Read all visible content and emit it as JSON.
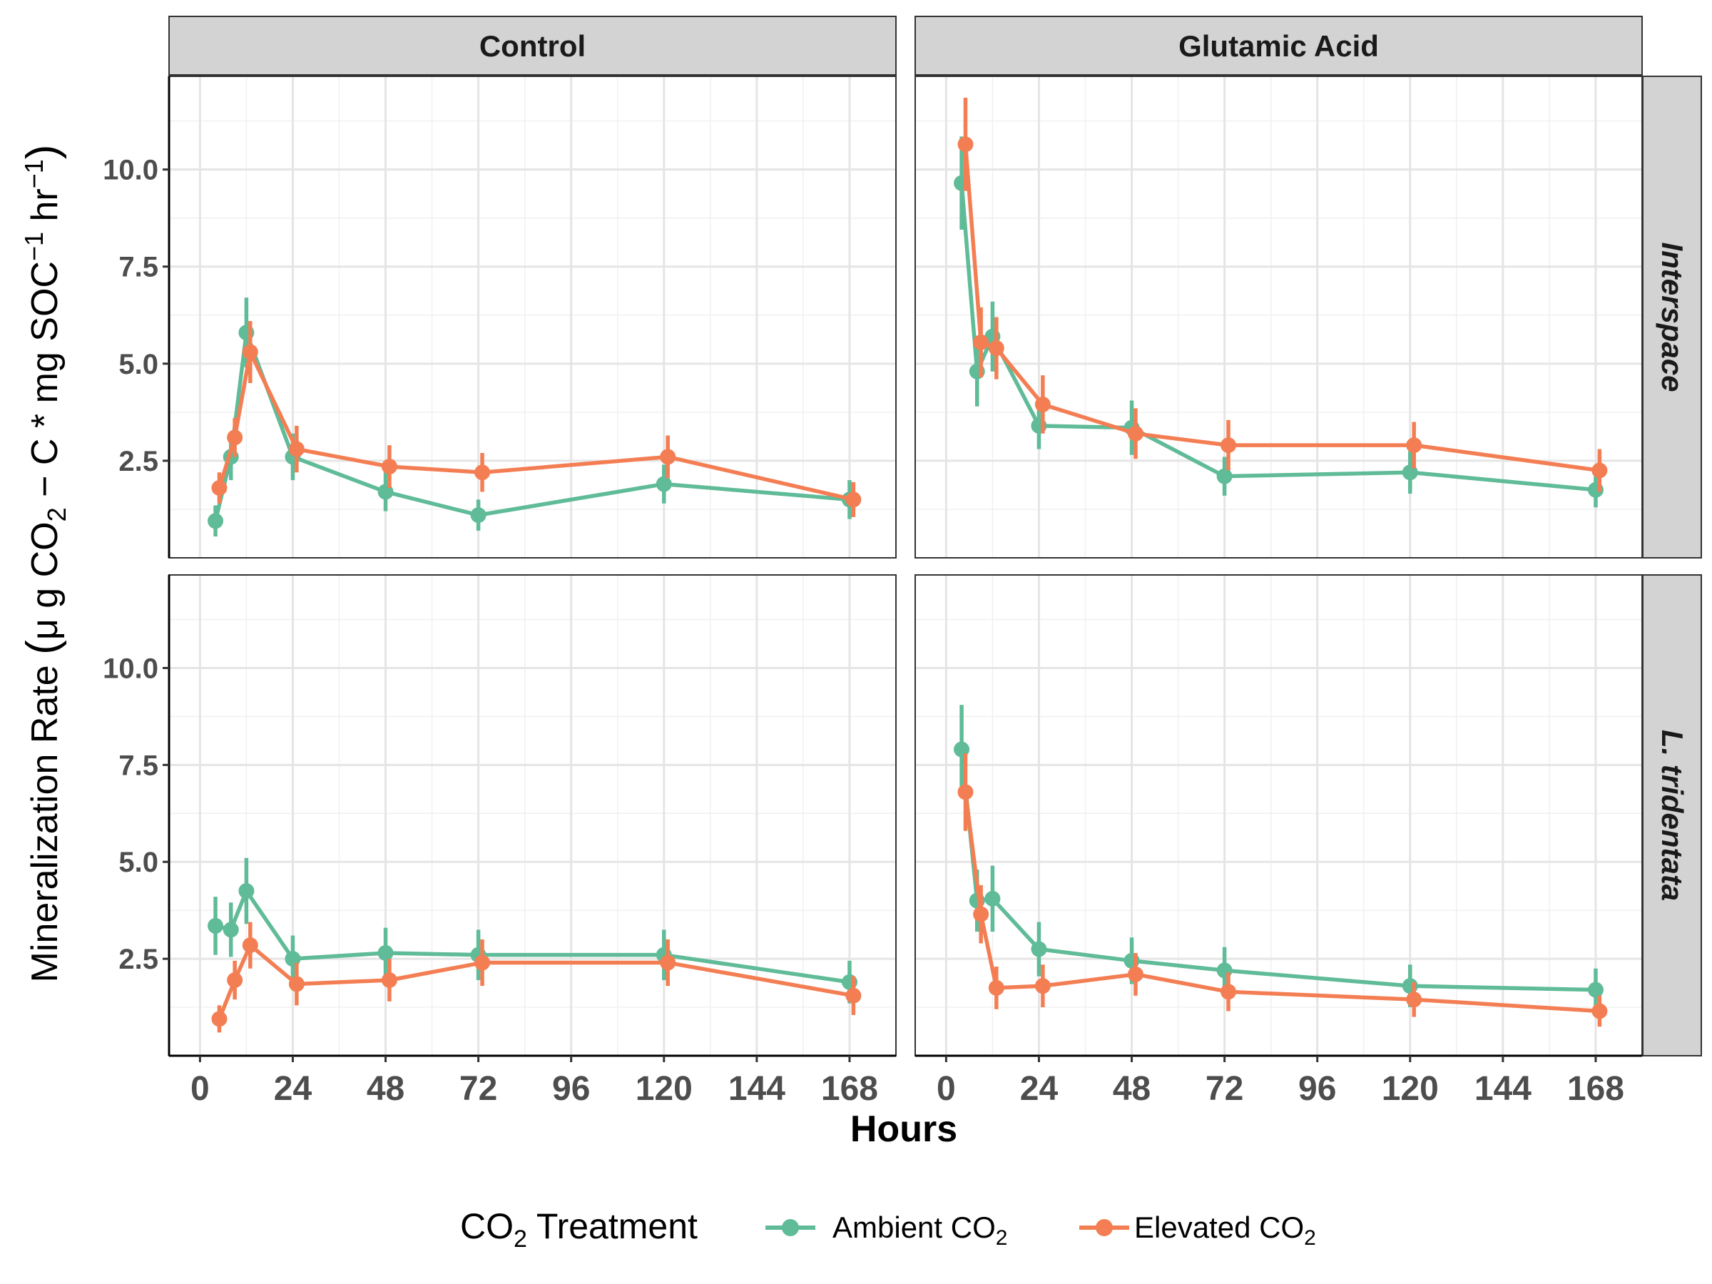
{
  "chart_data": {
    "type": "line",
    "facet_columns": [
      "Control",
      "Glutamic Acid"
    ],
    "facet_rows": [
      "Interspace",
      "L. tridentata"
    ],
    "xlabel": "Hours",
    "ylabel_parts": {
      "main": "Mineralization Rate",
      "lparen": "(",
      "mu": "μ",
      "g_co": " g CO",
      "sub2": "2",
      "c_mg": " − C * mg SOC",
      "sup_neg1": "−1",
      "hr": " hr",
      "sup_neg1b": "−1",
      "rparen": ")"
    },
    "x_ticks": [
      0,
      24,
      48,
      72,
      96,
      120,
      144,
      168
    ],
    "x_tick_labels": [
      "0",
      "24",
      "48",
      "72",
      "96",
      "120",
      "144",
      "168"
    ],
    "xlim": [
      -8,
      180
    ],
    "y_ticks": [
      2.5,
      5.0,
      7.5,
      10.0
    ],
    "y_tick_labels": [
      "2.5",
      "5.0",
      "7.5",
      "10.0"
    ],
    "ylim": [
      0,
      12.4
    ],
    "grid": true,
    "legend": {
      "title_pre": "CO",
      "title_sub": "2",
      "title_post": " Treatment",
      "position": "bottom",
      "entries": [
        {
          "label_pre": "Ambient CO",
          "label_sub": "2",
          "color": "#5FBB98"
        },
        {
          "label_pre": "Elevated CO",
          "label_sub": "2",
          "color": "#F47E53"
        }
      ]
    },
    "panels": [
      {
        "col": 0,
        "row": 0,
        "series": [
          {
            "name": "Ambient",
            "color": "#5FBB98",
            "x": [
              4,
              8,
              12,
              24,
              48,
              72,
              120,
              168
            ],
            "y": [
              0.95,
              2.6,
              5.8,
              2.6,
              1.7,
              1.1,
              1.9,
              1.5
            ],
            "err": [
              0.4,
              0.6,
              0.9,
              0.6,
              0.5,
              0.4,
              0.5,
              0.5
            ]
          },
          {
            "name": "Elevated",
            "color": "#F47E53",
            "x": [
              5,
              9,
              13,
              25,
              49,
              73,
              121,
              169
            ],
            "y": [
              1.8,
              3.1,
              5.3,
              2.8,
              2.35,
              2.2,
              2.6,
              1.5
            ],
            "err": [
              0.4,
              0.5,
              0.8,
              0.6,
              0.55,
              0.5,
              0.55,
              0.45
            ]
          }
        ]
      },
      {
        "col": 1,
        "row": 0,
        "series": [
          {
            "name": "Ambient",
            "color": "#5FBB98",
            "x": [
              4,
              8,
              12,
              24,
              48,
              72,
              120,
              168
            ],
            "y": [
              9.65,
              4.8,
              5.7,
              3.4,
              3.35,
              2.1,
              2.2,
              1.75
            ],
            "err": [
              1.2,
              0.9,
              0.9,
              0.6,
              0.7,
              0.5,
              0.55,
              0.45
            ]
          },
          {
            "name": "Elevated",
            "color": "#F47E53",
            "x": [
              5,
              9,
              13,
              25,
              49,
              73,
              121,
              169
            ],
            "y": [
              10.65,
              5.55,
              5.4,
              3.95,
              3.2,
              2.9,
              2.9,
              2.25
            ],
            "err": [
              1.2,
              0.9,
              0.8,
              0.75,
              0.65,
              0.65,
              0.6,
              0.55
            ]
          }
        ]
      },
      {
        "col": 0,
        "row": 1,
        "series": [
          {
            "name": "Ambient",
            "color": "#5FBB98",
            "x": [
              4,
              8,
              12,
              24,
              48,
              72,
              120,
              168
            ],
            "y": [
              3.35,
              3.25,
              4.25,
              2.5,
              2.65,
              2.6,
              2.6,
              1.9
            ],
            "err": [
              0.75,
              0.7,
              0.85,
              0.6,
              0.65,
              0.65,
              0.65,
              0.55
            ]
          },
          {
            "name": "Elevated",
            "color": "#F47E53",
            "x": [
              5,
              9,
              13,
              25,
              49,
              73,
              121,
              169
            ],
            "y": [
              0.95,
              1.95,
              2.85,
              1.85,
              1.95,
              2.4,
              2.4,
              1.55
            ],
            "err": [
              0.35,
              0.5,
              0.6,
              0.55,
              0.55,
              0.6,
              0.6,
              0.5
            ]
          }
        ]
      },
      {
        "col": 1,
        "row": 1,
        "series": [
          {
            "name": "Ambient",
            "color": "#5FBB98",
            "x": [
              4,
              8,
              12,
              24,
              48,
              72,
              120,
              168
            ],
            "y": [
              7.9,
              4.0,
              4.05,
              2.75,
              2.45,
              2.2,
              1.8,
              1.7
            ],
            "err": [
              1.15,
              0.8,
              0.85,
              0.7,
              0.6,
              0.6,
              0.55,
              0.55
            ]
          },
          {
            "name": "Elevated",
            "color": "#F47E53",
            "x": [
              5,
              9,
              13,
              25,
              49,
              73,
              121,
              169
            ],
            "y": [
              6.8,
              3.65,
              1.75,
              1.8,
              2.1,
              1.65,
              1.45,
              1.15
            ],
            "err": [
              1.0,
              0.75,
              0.55,
              0.55,
              0.55,
              0.5,
              0.45,
              0.4
            ]
          }
        ]
      }
    ]
  }
}
